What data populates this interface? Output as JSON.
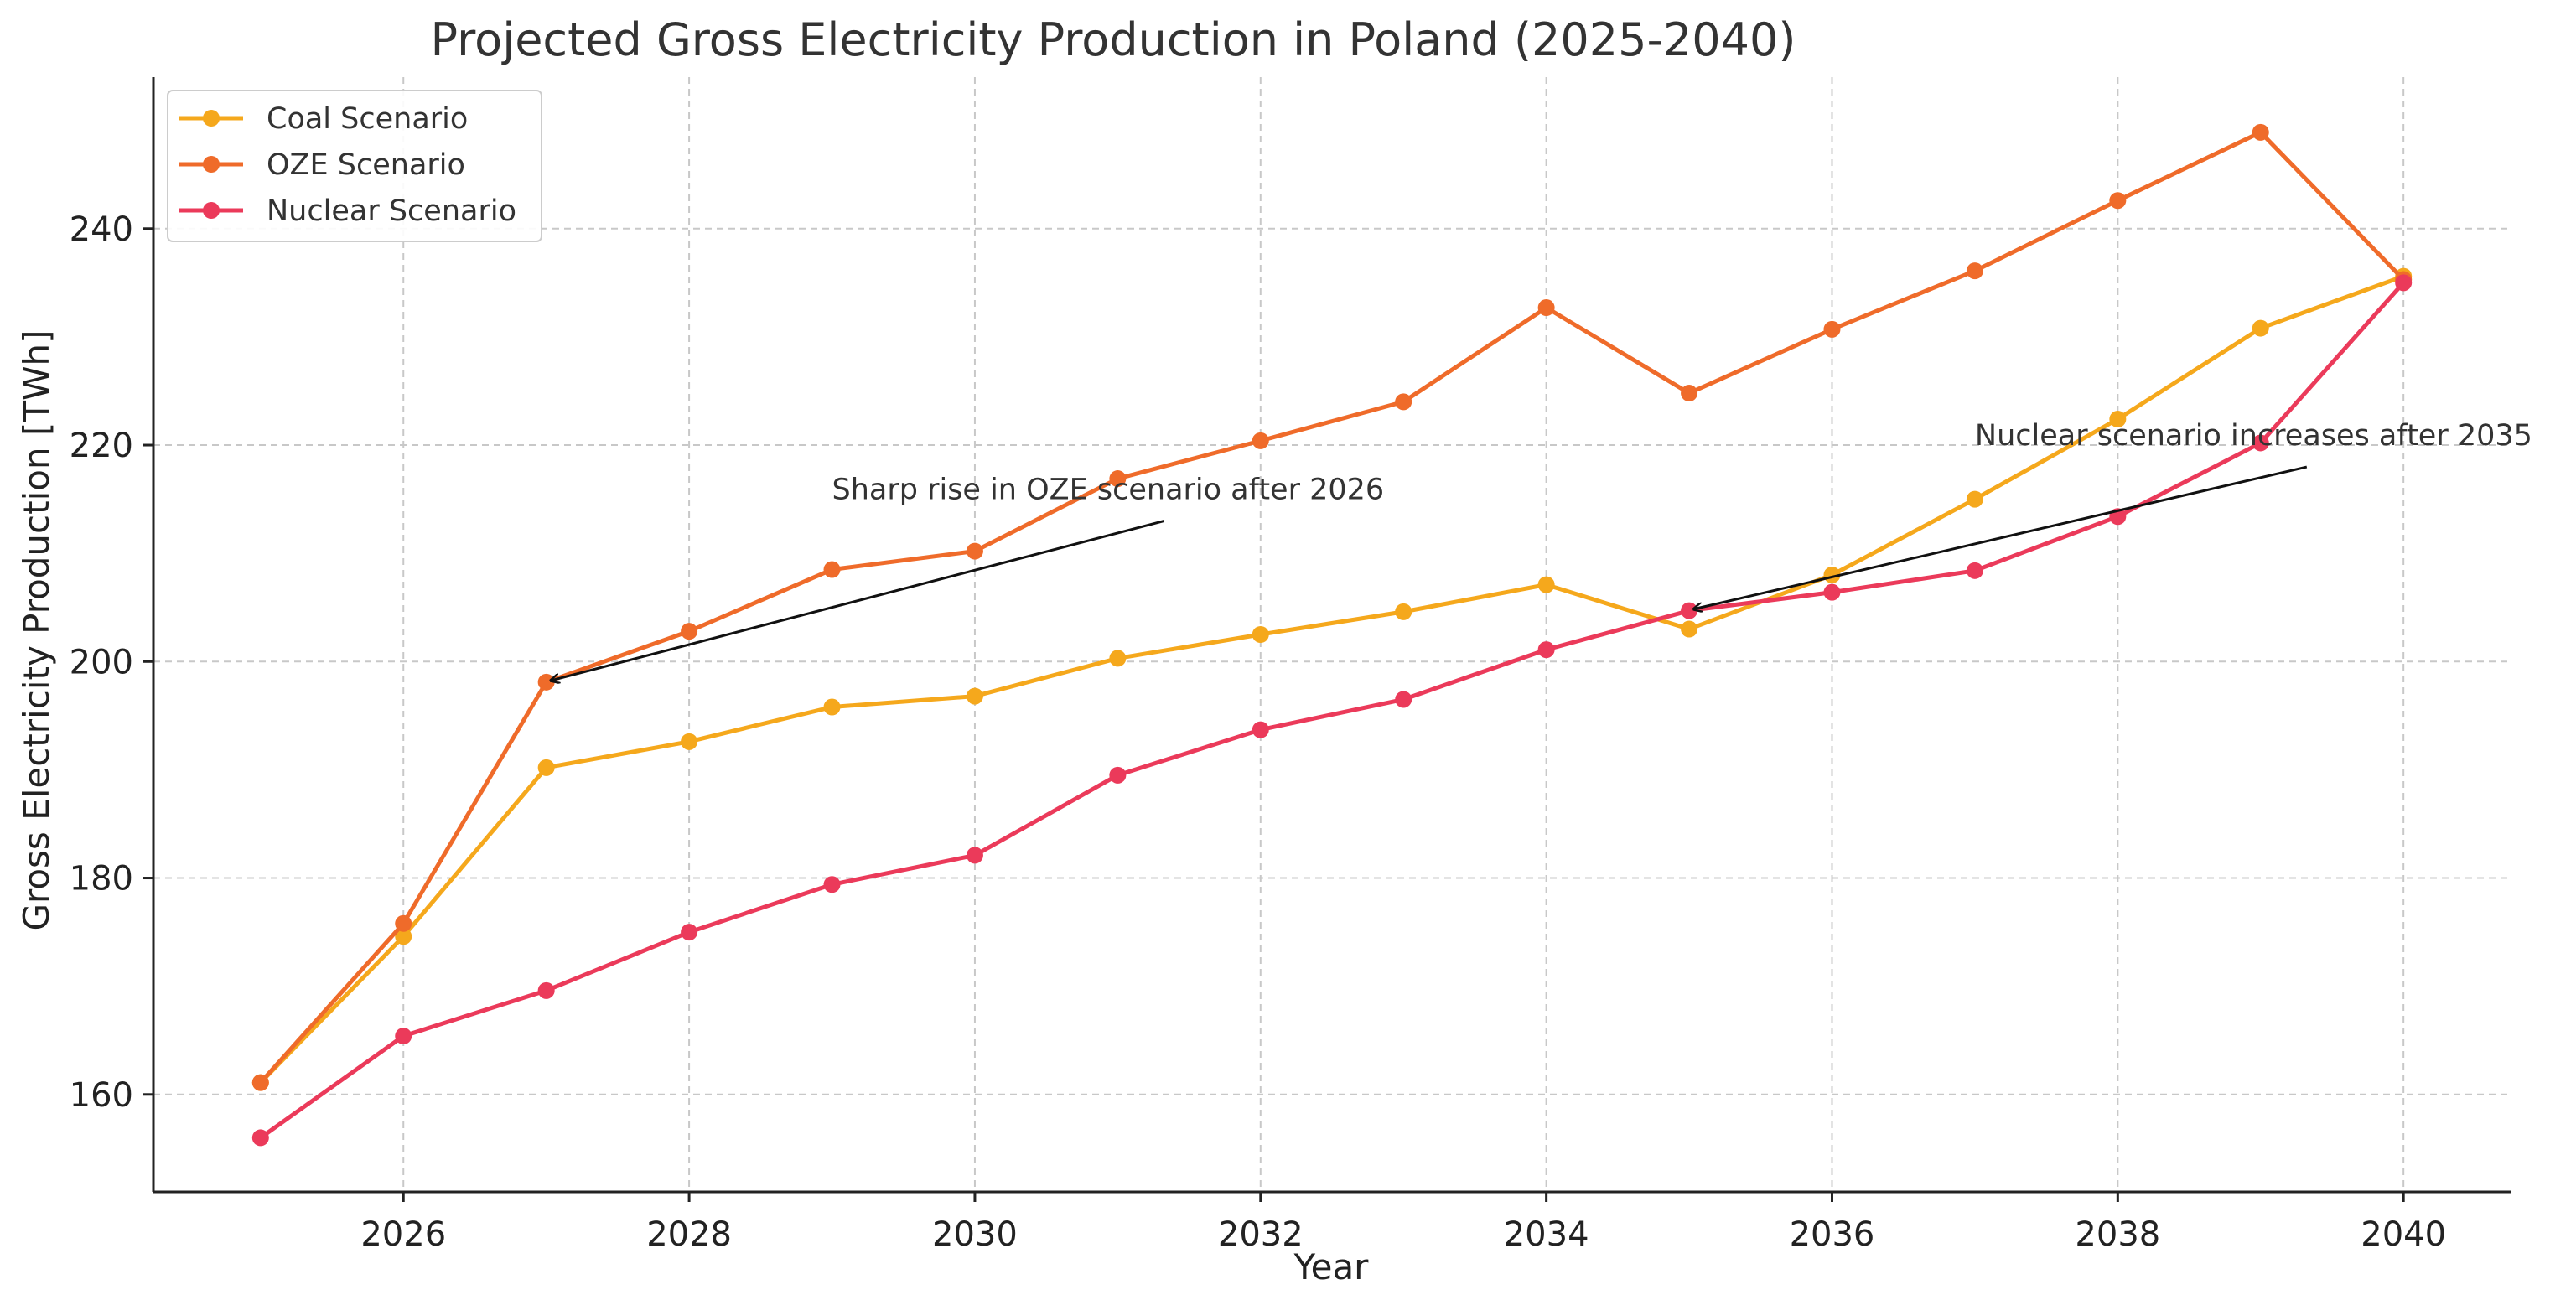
{
  "chart_data": {
    "type": "line",
    "title": "Projected Gross Electricity Production in Poland (2025-2040)",
    "xlabel": "Year",
    "ylabel": "Gross Electricity Production [TWh]",
    "xlim": [
      2024.25,
      2040.75
    ],
    "ylim": [
      151,
      254
    ],
    "x_ticks": [
      2026,
      2028,
      2030,
      2032,
      2034,
      2036,
      2038,
      2040
    ],
    "y_ticks": [
      160,
      180,
      200,
      220,
      240
    ],
    "grid": true,
    "legend_position": "top-left",
    "x": [
      2025,
      2026,
      2027,
      2028,
      2029,
      2030,
      2031,
      2032,
      2033,
      2034,
      2035,
      2036,
      2037,
      2038,
      2039,
      2040
    ],
    "series": [
      {
        "name": "Coal Scenario",
        "color": "#f5a81c",
        "values": [
          161.1,
          174.6,
          190.2,
          192.6,
          195.8,
          196.8,
          200.3,
          202.5,
          204.6,
          207.1,
          203.0,
          208.0,
          215.0,
          222.4,
          230.8,
          235.6
        ]
      },
      {
        "name": "OZE Scenario",
        "color": "#ef6b2a",
        "values": [
          161.1,
          175.8,
          198.1,
          202.8,
          208.5,
          210.2,
          216.9,
          220.4,
          224.0,
          232.7,
          224.8,
          230.7,
          236.1,
          242.6,
          248.9,
          235.3
        ]
      },
      {
        "name": "Nuclear Scenario",
        "color": "#eb3a5a",
        "values": [
          156.0,
          165.4,
          169.6,
          175.0,
          179.4,
          182.1,
          189.5,
          193.7,
          196.5,
          201.1,
          204.7,
          206.4,
          208.4,
          213.4,
          220.2,
          235.0
        ]
      }
    ],
    "annotations": [
      {
        "text": "Sharp rise in OZE scenario after 2026",
        "text_x": 2029,
        "text_y": 215,
        "arrow_to_x": 2027,
        "arrow_to_y": 198.1
      },
      {
        "text": "Nuclear scenario increases after 2035",
        "text_x": 2037,
        "text_y": 220,
        "arrow_to_x": 2035,
        "arrow_to_y": 204.7
      }
    ]
  }
}
